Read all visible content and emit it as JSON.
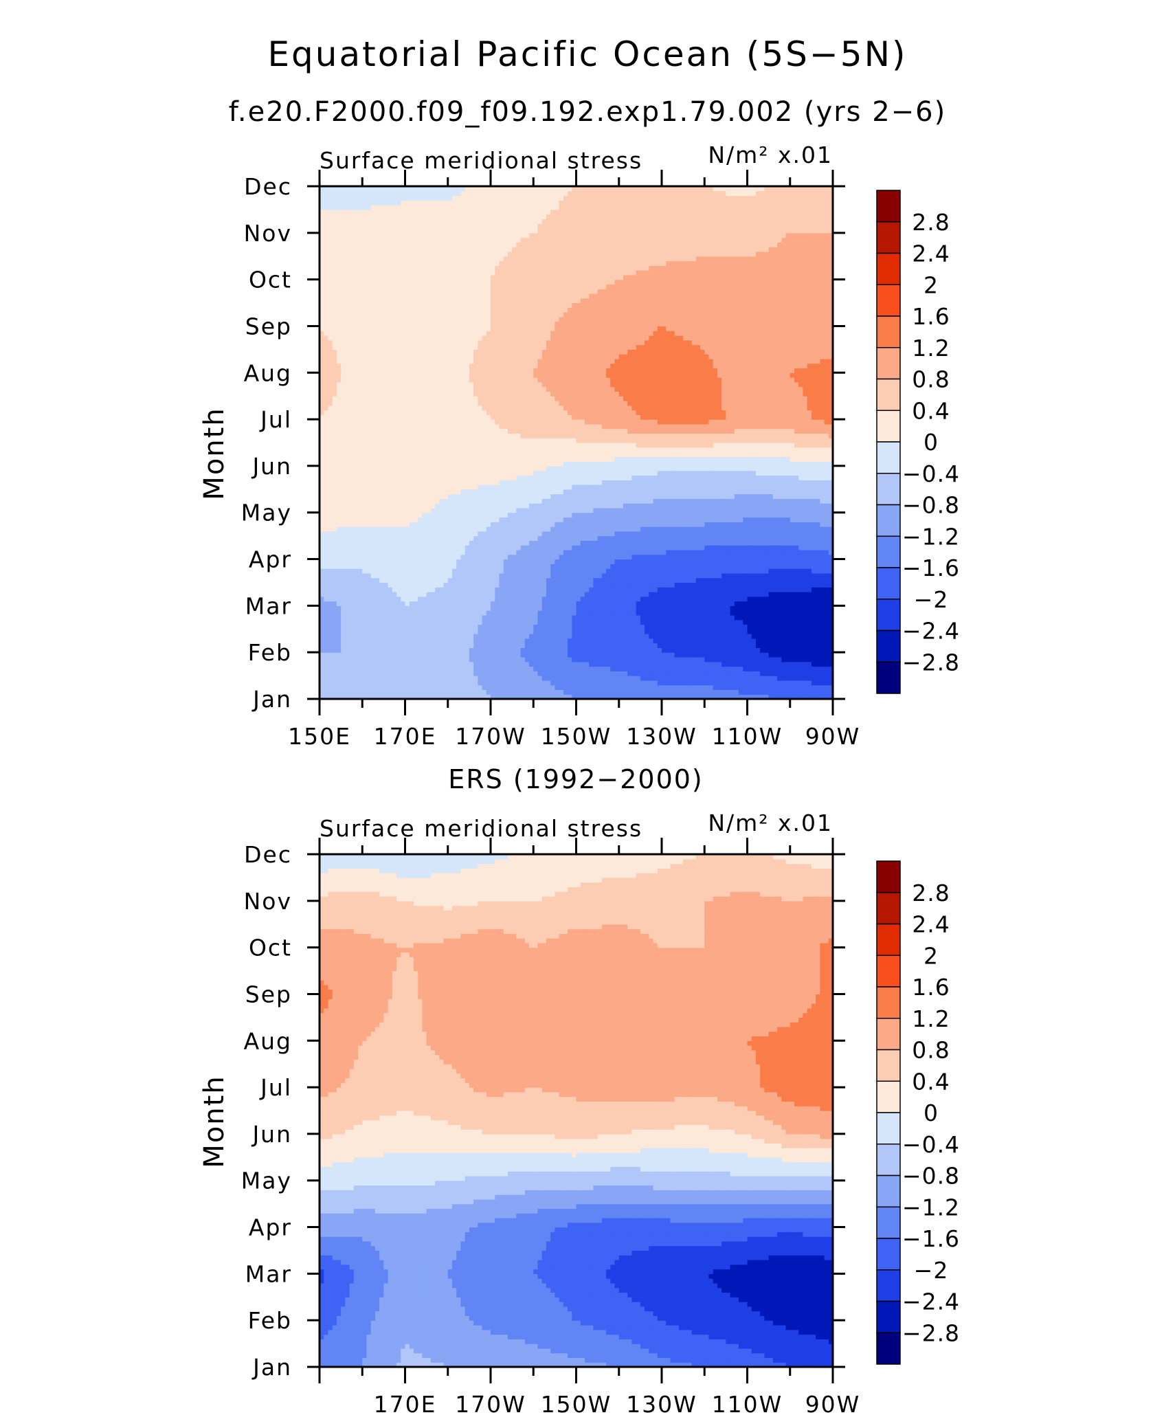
{
  "title": "Equatorial Pacific Ocean (5S−5N)",
  "subtitle": "f.e20.F2000.f09_f09.192.exp1.79.002 (yrs 2−6)",
  "colors": [
    "#00007f",
    "#0018b8",
    "#1f3fe6",
    "#3f63f4",
    "#6185f5",
    "#89a6f6",
    "#b1c7f9",
    "#d5e6fa",
    "#fde9da",
    "#fccdb2",
    "#fba987",
    "#fa7c48",
    "#f94f1c",
    "#e02c00",
    "#b61700",
    "#880000"
  ],
  "colorbar_labels": [
    "2.8",
    "2.4",
    "2",
    "1.6",
    "1.2",
    "0.8",
    "0.4",
    "0",
    "−0.4",
    "−0.8",
    "−1.2",
    "−1.6",
    "−2",
    "−2.4",
    "−2.8"
  ],
  "chart_data": [
    {
      "type": "heatmap",
      "panel_title": "",
      "left_label": "Surface meridional stress",
      "right_label": "N/m² x.01",
      "ylabel": "Month",
      "months": [
        "Jan",
        "Feb",
        "Mar",
        "Apr",
        "May",
        "Jun",
        "Jul",
        "Aug",
        "Sep",
        "Oct",
        "Nov",
        "Dec"
      ],
      "x_tick_labels": [
        "150E",
        "170E",
        "170W",
        "150W",
        "130W",
        "110W",
        "90W"
      ],
      "x": [
        150,
        160,
        170,
        180,
        190,
        200,
        210,
        220,
        230,
        240,
        250,
        260,
        270
      ],
      "levels": [
        -2.8,
        -2.4,
        -2,
        -1.6,
        -1.2,
        -0.8,
        -0.4,
        0,
        0.4,
        0.8,
        1.2,
        1.6,
        2,
        2.4,
        2.8
      ],
      "values": [
        [
          -0.6,
          -0.5,
          -0.4,
          -0.6,
          -0.8,
          -1.0,
          -1.2,
          -1.3,
          -1.4,
          -1.4,
          -1.5,
          -1.6,
          -1.7
        ],
        [
          -0.8,
          -0.8,
          -0.5,
          -0.6,
          -1.0,
          -1.3,
          -1.7,
          -1.8,
          -2.0,
          -2.1,
          -2.3,
          -2.6,
          -2.7
        ],
        [
          -0.9,
          -0.7,
          -0.4,
          -0.5,
          -0.8,
          -1.1,
          -1.6,
          -1.9,
          -2.2,
          -2.3,
          -2.5,
          -2.7,
          -2.8
        ],
        [
          -0.3,
          -0.3,
          -0.2,
          -0.3,
          -0.7,
          -1.0,
          -1.4,
          -1.6,
          -1.7,
          -1.8,
          -1.8,
          -1.8,
          -1.7
        ],
        [
          0.2,
          0.1,
          0.1,
          -0.1,
          -0.3,
          -0.5,
          -0.8,
          -0.9,
          -1.0,
          -1.0,
          -1.1,
          -1.1,
          -1.0
        ],
        [
          0.2,
          0.2,
          0.2,
          0.2,
          0.2,
          0.1,
          -0.1,
          -0.2,
          -0.3,
          -0.3,
          -0.3,
          -0.2,
          -0.1
        ],
        [
          0.4,
          0.3,
          0.3,
          0.3,
          0.4,
          0.6,
          0.8,
          1.1,
          1.3,
          1.3,
          1.1,
          1.1,
          1.3
        ],
        [
          0.5,
          0.3,
          0.3,
          0.3,
          0.5,
          0.8,
          1.0,
          1.3,
          1.4,
          1.3,
          1.0,
          1.2,
          1.3
        ],
        [
          0.4,
          0.3,
          0.3,
          0.3,
          0.4,
          0.7,
          0.9,
          1.0,
          1.2,
          1.1,
          0.9,
          1.0,
          1.0
        ],
        [
          0.2,
          0.2,
          0.2,
          0.3,
          0.4,
          0.6,
          0.7,
          0.8,
          0.9,
          0.9,
          0.9,
          0.9,
          0.9
        ],
        [
          0.1,
          0.1,
          0.2,
          0.2,
          0.3,
          0.4,
          0.5,
          0.6,
          0.6,
          0.7,
          0.7,
          0.8,
          0.8
        ],
        [
          -0.1,
          -0.1,
          -0.1,
          -0.1,
          0.1,
          0.3,
          0.4,
          0.5,
          0.5,
          0.4,
          0.3,
          0.5,
          0.7
        ]
      ]
    },
    {
      "type": "heatmap",
      "panel_title": "ERS (1992−2000)",
      "left_label": "Surface meridional stress",
      "right_label": "N/m² x.01",
      "ylabel": "Month",
      "months": [
        "Jan",
        "Feb",
        "Mar",
        "Apr",
        "May",
        "Jun",
        "Jul",
        "Aug",
        "Sep",
        "Oct",
        "Nov",
        "Dec"
      ],
      "x_tick_labels": [
        "170E",
        "170W",
        "150W",
        "130W",
        "110W",
        "90W"
      ],
      "x": [
        150,
        160,
        170,
        180,
        190,
        200,
        210,
        220,
        230,
        240,
        250,
        260,
        270
      ],
      "levels": [
        -2.8,
        -2.4,
        -2,
        -1.6,
        -1.2,
        -0.8,
        -0.4,
        0,
        0.4,
        0.8,
        1.2,
        1.6,
        2,
        2.4,
        2.8
      ],
      "values": [
        [
          -1.3,
          -1.2,
          -0.7,
          -0.8,
          -0.9,
          -1.0,
          -1.1,
          -1.2,
          -1.5,
          -1.6,
          -1.8,
          -2.0,
          -2.2
        ],
        [
          -1.8,
          -1.3,
          -0.9,
          -1.1,
          -1.3,
          -1.4,
          -1.6,
          -1.8,
          -2.0,
          -2.2,
          -2.3,
          -2.5,
          -2.6
        ],
        [
          -2.1,
          -1.5,
          -1.0,
          -1.2,
          -1.4,
          -1.6,
          -1.8,
          -2.1,
          -2.3,
          -2.4,
          -2.6,
          -2.8,
          -2.7
        ],
        [
          -1.0,
          -1.1,
          -1.0,
          -1.1,
          -1.3,
          -1.5,
          -1.7,
          -1.8,
          -1.8,
          -1.7,
          -1.8,
          -1.9,
          -1.8
        ],
        [
          -0.2,
          -0.3,
          -0.3,
          -0.4,
          -0.5,
          -0.6,
          -0.6,
          -0.7,
          -0.6,
          -0.6,
          -0.5,
          -0.6,
          -0.6
        ],
        [
          0.5,
          0.3,
          0.2,
          0.3,
          0.4,
          0.4,
          0.5,
          0.4,
          0.3,
          0.3,
          0.4,
          0.8,
          0.9
        ],
        [
          0.9,
          0.7,
          0.6,
          0.7,
          0.9,
          0.8,
          0.9,
          1.0,
          1.0,
          0.9,
          1.1,
          1.4,
          1.5
        ],
        [
          1.1,
          0.8,
          0.7,
          0.9,
          1.0,
          0.9,
          1.1,
          1.1,
          1.0,
          0.9,
          1.2,
          1.3,
          1.4
        ],
        [
          1.3,
          1.0,
          0.7,
          1.0,
          1.0,
          0.9,
          1.0,
          1.0,
          0.8,
          0.8,
          0.9,
          1.0,
          1.3
        ],
        [
          1.0,
          0.9,
          0.8,
          0.9,
          1.1,
          0.8,
          1.0,
          1.0,
          0.8,
          0.8,
          0.9,
          1.0,
          1.3
        ],
        [
          0.5,
          0.6,
          0.4,
          0.3,
          0.4,
          0.4,
          0.5,
          0.6,
          0.6,
          0.8,
          0.9,
          0.8,
          0.9
        ],
        [
          -0.3,
          -0.2,
          -0.4,
          -0.2,
          -0.1,
          0.1,
          0.2,
          0.2,
          0.3,
          0.4,
          0.5,
          0.3,
          0.2
        ]
      ]
    }
  ]
}
